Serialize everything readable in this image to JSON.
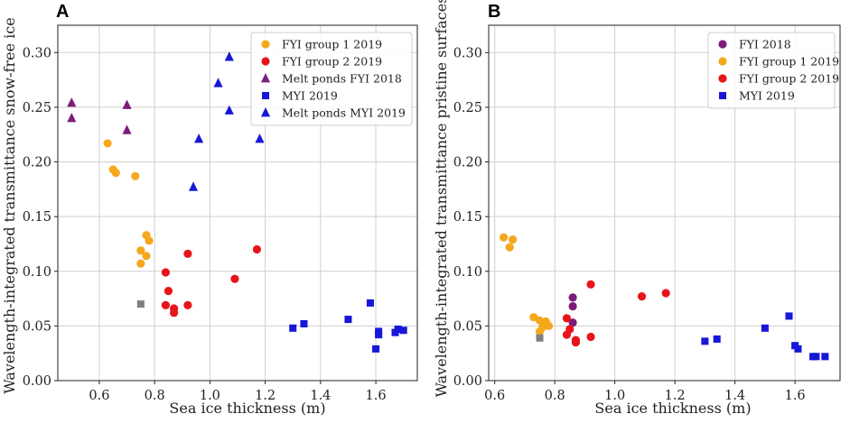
{
  "chart_data": [
    {
      "type": "scatter",
      "panel_label": "A",
      "xlabel": "Sea ice thickness (m)",
      "ylabel": "Wavelength-integrated transmittance snow-free ice",
      "xlim": [
        0.45,
        1.75
      ],
      "ylim": [
        0.0,
        0.325
      ],
      "xticks": [
        0.6,
        0.8,
        1.0,
        1.2,
        1.4,
        1.6
      ],
      "xtick_labels": [
        "0.6",
        "0.8",
        "1.0",
        "1.2",
        "1.4",
        "1.6"
      ],
      "yticks": [
        0.0,
        0.05,
        0.1,
        0.15,
        0.2,
        0.25,
        0.3
      ],
      "ytick_labels": [
        "0.00",
        "0.05",
        "0.10",
        "0.15",
        "0.20",
        "0.25",
        "0.30"
      ],
      "grid": true,
      "legend_position": "top-right",
      "series": [
        {
          "name": "FYI group 1 2019",
          "marker": "circle",
          "color": "#f5a81c",
          "points": [
            [
              0.63,
              0.217
            ],
            [
              0.65,
              0.193
            ],
            [
              0.66,
              0.19
            ],
            [
              0.73,
              0.187
            ],
            [
              0.77,
              0.133
            ],
            [
              0.78,
              0.128
            ],
            [
              0.75,
              0.119
            ],
            [
              0.77,
              0.114
            ],
            [
              0.75,
              0.107
            ]
          ]
        },
        {
          "name": "FYI group 2 2019",
          "marker": "circle",
          "color": "#e8141b",
          "points": [
            [
              0.92,
              0.116
            ],
            [
              1.17,
              0.12
            ],
            [
              0.84,
              0.099
            ],
            [
              1.09,
              0.093
            ],
            [
              0.85,
              0.082
            ],
            [
              0.84,
              0.069
            ],
            [
              0.87,
              0.066
            ],
            [
              0.92,
              0.069
            ],
            [
              0.87,
              0.062
            ]
          ]
        },
        {
          "name": "Melt ponds FYI 2018",
          "marker": "triangle",
          "color": "#7d1d7a",
          "points": [
            [
              0.5,
              0.254
            ],
            [
              0.5,
              0.24
            ],
            [
              0.7,
              0.252
            ],
            [
              0.7,
              0.229
            ]
          ]
        },
        {
          "name": "MYI 2019",
          "marker": "square",
          "color": "#1717d8",
          "points": [
            [
              1.3,
              0.048
            ],
            [
              1.34,
              0.052
            ],
            [
              1.5,
              0.056
            ],
            [
              1.58,
              0.071
            ],
            [
              1.61,
              0.045
            ],
            [
              1.61,
              0.042
            ],
            [
              1.6,
              0.029
            ],
            [
              1.67,
              0.044
            ],
            [
              1.68,
              0.047
            ],
            [
              1.7,
              0.046
            ]
          ]
        },
        {
          "name": "Melt ponds MYI 2019",
          "marker": "triangle",
          "color": "#1717d8",
          "points": [
            [
              1.07,
              0.296
            ],
            [
              1.03,
              0.272
            ],
            [
              1.07,
              0.247
            ],
            [
              0.96,
              0.221
            ],
            [
              1.18,
              0.221
            ],
            [
              0.94,
              0.177
            ]
          ]
        },
        {
          "name": "",
          "marker": "square",
          "color": "#808080",
          "in_legend": false,
          "points": [
            [
              0.75,
              0.07
            ]
          ]
        }
      ]
    },
    {
      "type": "scatter",
      "panel_label": "B",
      "xlabel": "Sea ice thickness (m)",
      "ylabel": "Wavelength-integrated transmittance pristine surfaces",
      "xlim": [
        0.58,
        1.75
      ],
      "ylim": [
        0.0,
        0.325
      ],
      "xticks": [
        0.6,
        0.8,
        1.0,
        1.2,
        1.4,
        1.6
      ],
      "xtick_labels": [
        "0.6",
        "0.8",
        "1.0",
        "1.2",
        "1.4",
        "1.6"
      ],
      "yticks": [
        0.0,
        0.05,
        0.1,
        0.15,
        0.2,
        0.25,
        0.3
      ],
      "ytick_labels": [
        "0.00",
        "0.05",
        "0.10",
        "0.15",
        "0.20",
        "0.25",
        "0.30"
      ],
      "grid": true,
      "legend_position": "top-right",
      "series": [
        {
          "name": "FYI 2018",
          "marker": "circle",
          "color": "#7d1d7a",
          "points": [
            [
              0.86,
              0.076
            ],
            [
              0.86,
              0.068
            ],
            [
              0.86,
              0.053
            ]
          ]
        },
        {
          "name": "FYI group 1 2019",
          "marker": "circle",
          "color": "#f5a81c",
          "points": [
            [
              0.63,
              0.131
            ],
            [
              0.66,
              0.129
            ],
            [
              0.65,
              0.122
            ],
            [
              0.73,
              0.058
            ],
            [
              0.75,
              0.055
            ],
            [
              0.77,
              0.054
            ],
            [
              0.78,
              0.05
            ],
            [
              0.76,
              0.049
            ],
            [
              0.75,
              0.045
            ]
          ]
        },
        {
          "name": "FYI group 2 2019",
          "marker": "circle",
          "color": "#e8141b",
          "points": [
            [
              0.92,
              0.088
            ],
            [
              1.09,
              0.077
            ],
            [
              1.17,
              0.08
            ],
            [
              0.84,
              0.057
            ],
            [
              0.85,
              0.047
            ],
            [
              0.84,
              0.042
            ],
            [
              0.87,
              0.037
            ],
            [
              0.87,
              0.035
            ],
            [
              0.92,
              0.04
            ]
          ]
        },
        {
          "name": "MYI 2019",
          "marker": "square",
          "color": "#1717d8",
          "points": [
            [
              1.3,
              0.036
            ],
            [
              1.34,
              0.038
            ],
            [
              1.5,
              0.048
            ],
            [
              1.58,
              0.059
            ],
            [
              1.6,
              0.032
            ],
            [
              1.61,
              0.029
            ],
            [
              1.66,
              0.022
            ],
            [
              1.67,
              0.022
            ],
            [
              1.7,
              0.022
            ]
          ]
        },
        {
          "name": "",
          "marker": "square",
          "color": "#808080",
          "in_legend": false,
          "points": [
            [
              0.75,
              0.039
            ]
          ]
        }
      ]
    }
  ]
}
